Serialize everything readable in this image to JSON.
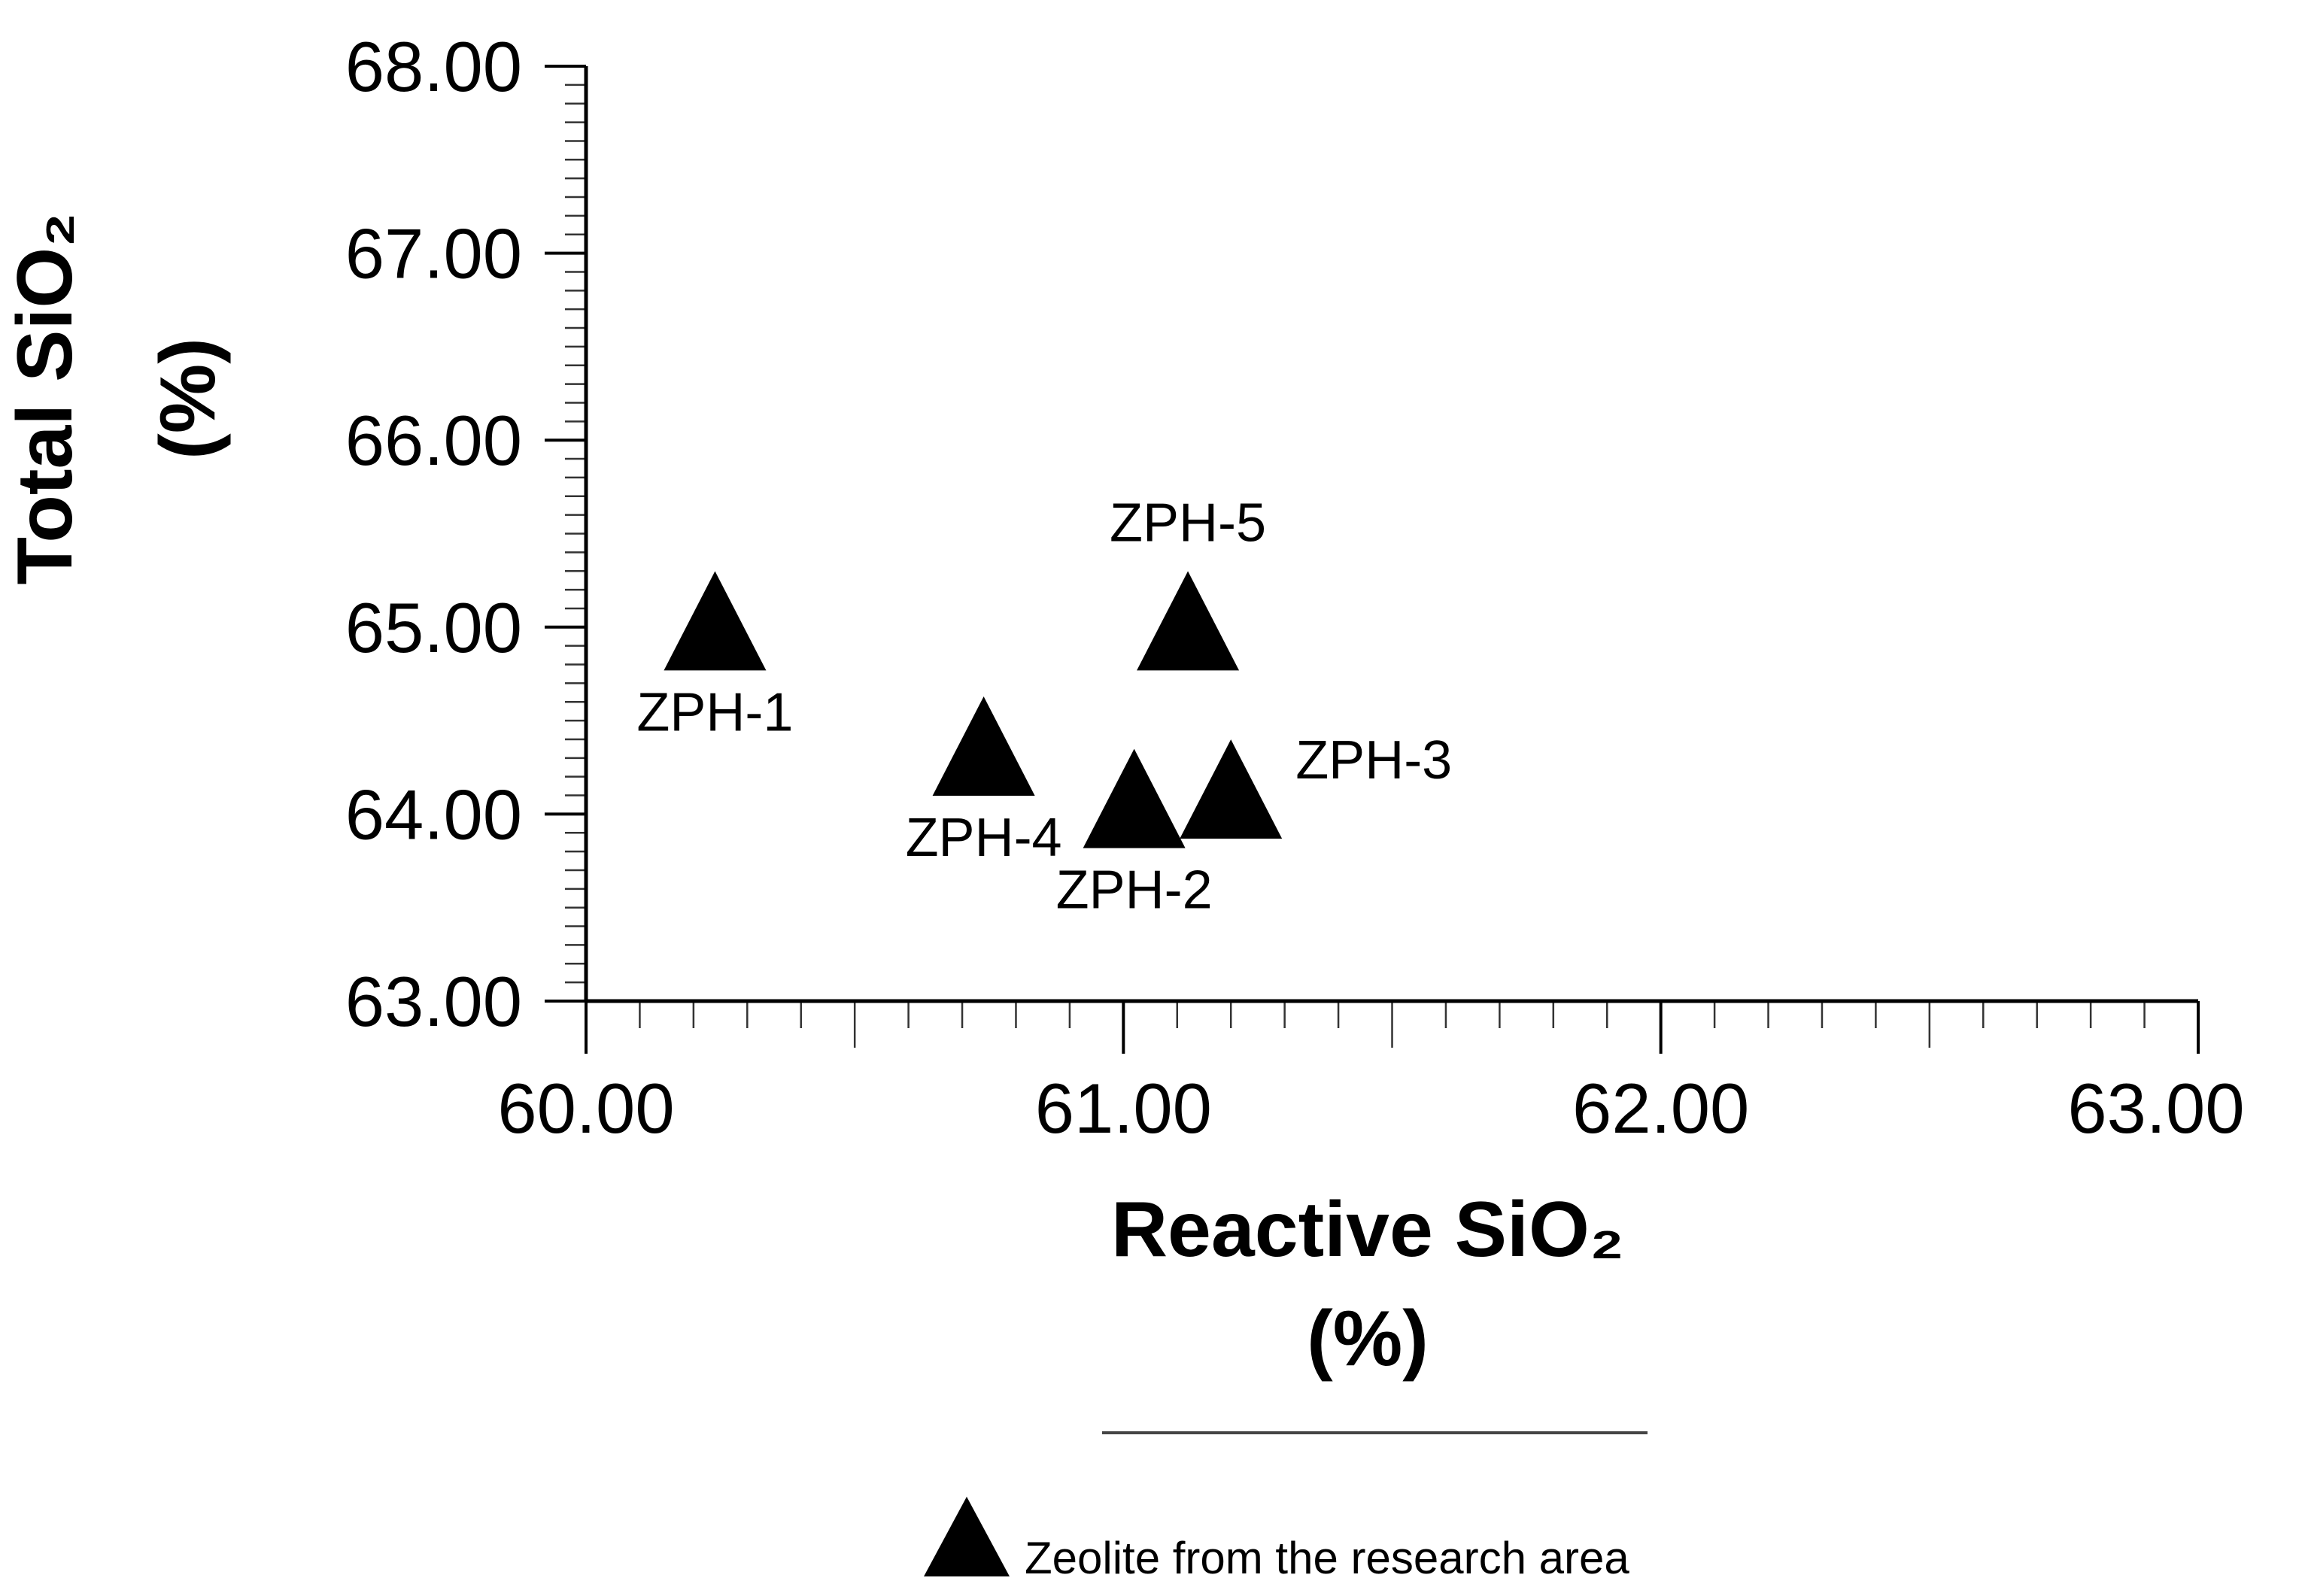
{
  "chart_data": {
    "type": "scatter",
    "xlabel": "Reactive SiO₂",
    "xlabel_unit": "(%)",
    "ylabel": "Total SiO₂",
    "ylabel_unit": "(%)",
    "xlim": [
      60.0,
      63.0
    ],
    "ylim": [
      63.0,
      68.0
    ],
    "x_ticks": [
      "60.00",
      "61.00",
      "62.00",
      "63.00"
    ],
    "y_ticks": [
      "63.00",
      "64.00",
      "65.00",
      "66.00",
      "67.00",
      "68.00"
    ],
    "grid": false,
    "marker": "triangle",
    "marker_color": "#000000",
    "series": [
      {
        "name": "Zeolite from the research area",
        "points": [
          {
            "label": "ZPH-1",
            "x": 60.24,
            "y": 64.97,
            "label_pos": "below"
          },
          {
            "label": "ZPH-2",
            "x": 61.02,
            "y": 64.02,
            "label_pos": "below"
          },
          {
            "label": "ZPH-3",
            "x": 61.2,
            "y": 64.07,
            "label_pos": "right"
          },
          {
            "label": "ZPH-4",
            "x": 60.74,
            "y": 64.3,
            "label_pos": "below"
          },
          {
            "label": "ZPH-5",
            "x": 61.12,
            "y": 64.97,
            "label_pos": "above"
          }
        ]
      }
    ],
    "legend": {
      "position": "bottom-center",
      "entries": [
        {
          "label": "Zeolite from the research area",
          "marker": "triangle"
        }
      ]
    }
  }
}
